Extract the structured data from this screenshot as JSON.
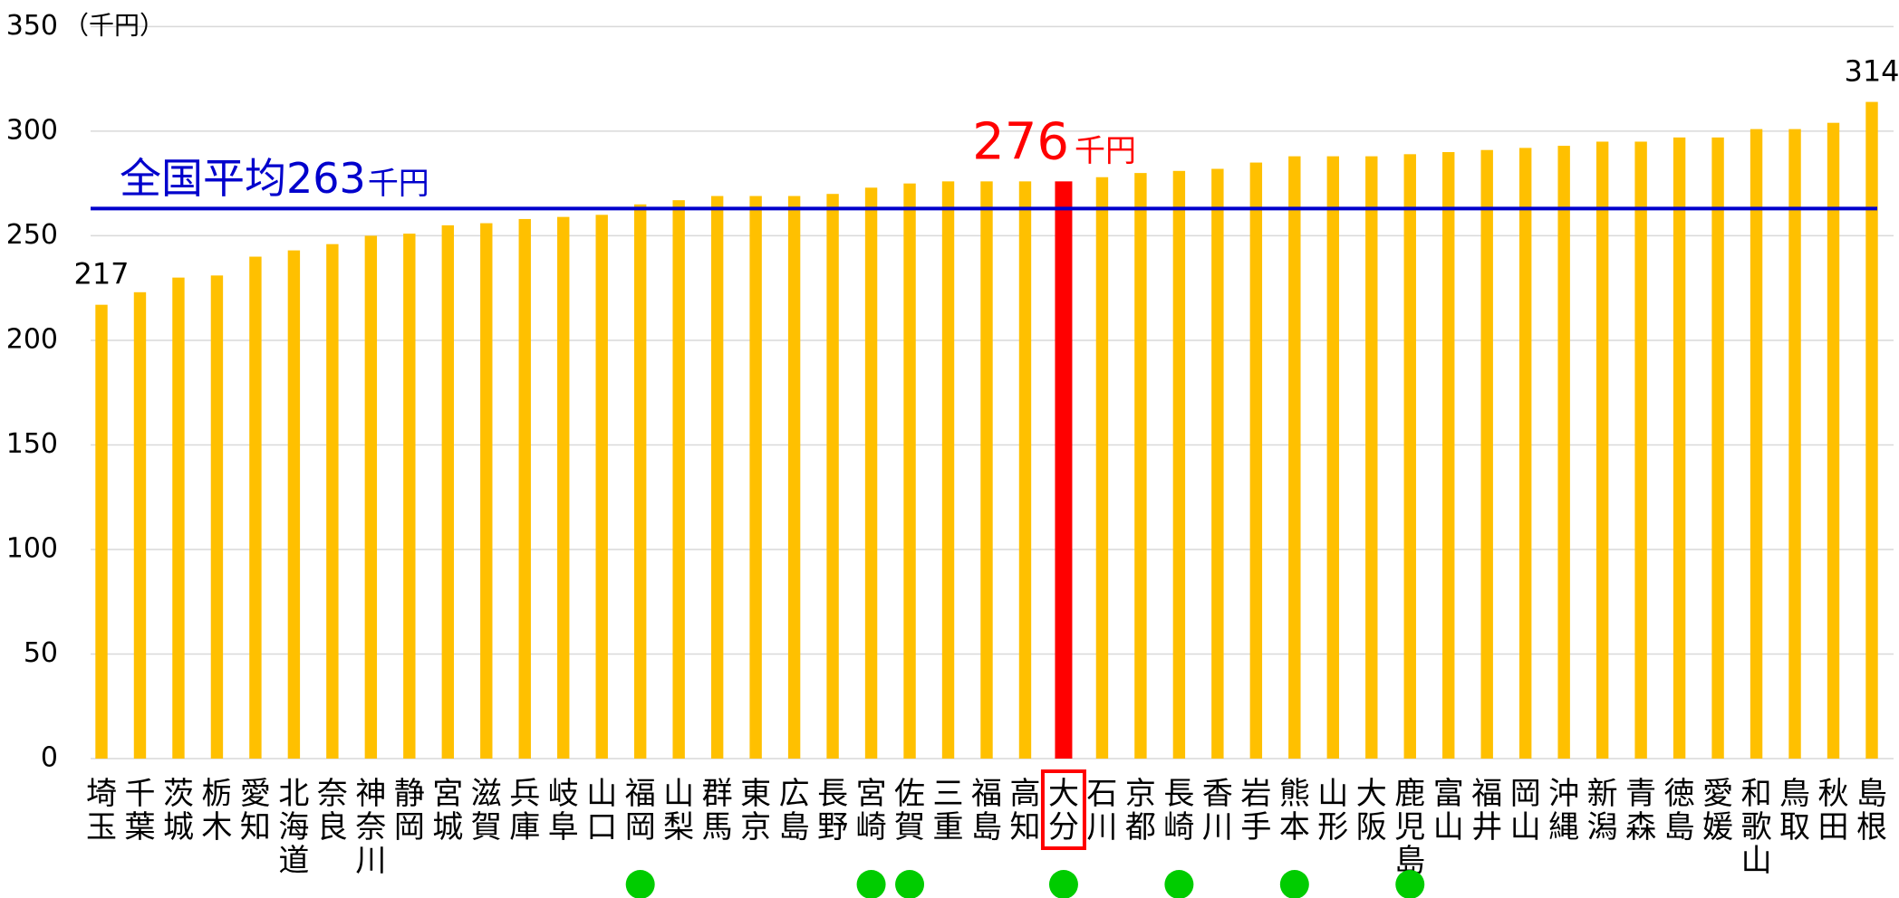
{
  "chart_data": {
    "type": "bar",
    "y_unit": "（千円）",
    "categories": [
      "埼玉",
      "千葉",
      "茨城",
      "栃木",
      "愛知",
      "北海道",
      "奈良",
      "神奈川",
      "静岡",
      "宮城",
      "滋賀",
      "兵庫",
      "岐阜",
      "山口",
      "福岡",
      "山梨",
      "群馬",
      "東京",
      "広島",
      "長野",
      "宮崎",
      "佐賀",
      "三重",
      "福島",
      "高知",
      "大分",
      "石川",
      "京都",
      "長崎",
      "香川",
      "岩手",
      "熊本",
      "山形",
      "大阪",
      "鹿児島",
      "富山",
      "福井",
      "岡山",
      "沖縄",
      "新潟",
      "青森",
      "徳島",
      "愛媛",
      "和歌山",
      "鳥取",
      "秋田",
      "島根"
    ],
    "values": [
      217,
      223,
      230,
      231,
      240,
      243,
      246,
      250,
      251,
      255,
      256,
      258,
      259,
      260,
      265,
      267,
      269,
      269,
      269,
      270,
      273,
      275,
      276,
      276,
      276,
      276,
      278,
      280,
      281,
      282,
      285,
      288,
      288,
      288,
      289,
      290,
      291,
      292,
      293,
      295,
      295,
      297,
      297,
      301,
      301,
      304,
      314
    ],
    "value_labels": [
      "217",
      null,
      null,
      null,
      null,
      null,
      null,
      null,
      null,
      null,
      null,
      null,
      null,
      null,
      null,
      null,
      null,
      null,
      null,
      null,
      null,
      null,
      null,
      null,
      null,
      "276",
      null,
      null,
      null,
      null,
      null,
      null,
      null,
      null,
      null,
      null,
      null,
      null,
      null,
      null,
      null,
      null,
      null,
      null,
      null,
      null,
      "314"
    ],
    "color": "#ffc000",
    "highlight": "大分",
    "highlight_color": "#ff0000",
    "highlight_unit": "千円",
    "marked": [
      "福岡",
      "宮崎",
      "佐賀",
      "大分",
      "長崎",
      "熊本",
      "鹿児島"
    ],
    "marked_color": "#00cc00",
    "average": {
      "value": 263,
      "text": "全国平均263",
      "unit": "千円",
      "color": "#0000cc"
    },
    "ylim": [
      0,
      350
    ],
    "yticks": [
      0,
      50,
      100,
      150,
      200,
      250,
      300,
      350
    ],
    "grid": true
  }
}
